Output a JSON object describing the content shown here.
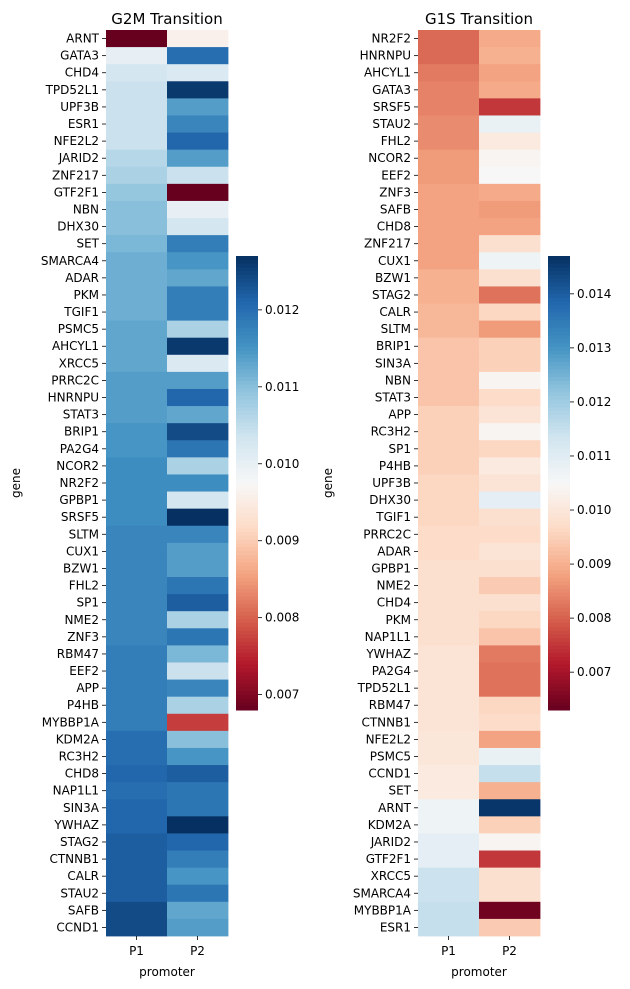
{
  "palette": {
    "low": "#67001f",
    "mid": "#f7f7f7",
    "high": "#053061"
  },
  "chart_data": [
    {
      "type": "heatmap",
      "title": "G2M Transition",
      "xlabel": "promoter",
      "ylabel": "gene",
      "columns": [
        "P1",
        "P2"
      ],
      "colorbar": {
        "min": 0.0068,
        "max": 0.0127,
        "ticks": [
          "0.007",
          "0.008",
          "0.009",
          "0.010",
          "0.011",
          "0.012"
        ],
        "tick_values": [
          0.007,
          0.008,
          0.009,
          0.01,
          0.011,
          0.012
        ]
      },
      "rows": [
        {
          "gene": "ARNT",
          "P1": 0.0068,
          "P2": 0.0096
        },
        {
          "gene": "GATA3",
          "P1": 0.01,
          "P2": 0.012
        },
        {
          "gene": "CHD4",
          "P1": 0.0103,
          "P2": 0.0102
        },
        {
          "gene": "TPD52L1",
          "P1": 0.0104,
          "P2": 0.0126
        },
        {
          "gene": "UPF3B",
          "P1": 0.0104,
          "P2": 0.0114
        },
        {
          "gene": "ESR1",
          "P1": 0.0104,
          "P2": 0.0117
        },
        {
          "gene": "NFE2L2",
          "P1": 0.0104,
          "P2": 0.0121
        },
        {
          "gene": "JARID2",
          "P1": 0.0106,
          "P2": 0.0114
        },
        {
          "gene": "ZNF217",
          "P1": 0.0107,
          "P2": 0.0104
        },
        {
          "gene": "GTF2F1",
          "P1": 0.0109,
          "P2": 0.0068
        },
        {
          "gene": "NBN",
          "P1": 0.011,
          "P2": 0.01
        },
        {
          "gene": "DHX30",
          "P1": 0.011,
          "P2": 0.0103
        },
        {
          "gene": "SET",
          "P1": 0.0111,
          "P2": 0.0118
        },
        {
          "gene": "SMARCA4",
          "P1": 0.0112,
          "P2": 0.0115
        },
        {
          "gene": "ADAR",
          "P1": 0.0112,
          "P2": 0.0113
        },
        {
          "gene": "PKM",
          "P1": 0.0112,
          "P2": 0.0118
        },
        {
          "gene": "TGIF1",
          "P1": 0.0112,
          "P2": 0.0118
        },
        {
          "gene": "PSMC5",
          "P1": 0.0113,
          "P2": 0.0107
        },
        {
          "gene": "AHCYL1",
          "P1": 0.0113,
          "P2": 0.0126
        },
        {
          "gene": "XRCC5",
          "P1": 0.0113,
          "P2": 0.0102
        },
        {
          "gene": "PRRC2C",
          "P1": 0.0114,
          "P2": 0.0114
        },
        {
          "gene": "HNRNPU",
          "P1": 0.0114,
          "P2": 0.0121
        },
        {
          "gene": "STAT3",
          "P1": 0.0114,
          "P2": 0.0113
        },
        {
          "gene": "BRIP1",
          "P1": 0.0115,
          "P2": 0.0124
        },
        {
          "gene": "PA2G4",
          "P1": 0.0115,
          "P2": 0.0119
        },
        {
          "gene": "NCOR2",
          "P1": 0.0116,
          "P2": 0.0107
        },
        {
          "gene": "NR2F2",
          "P1": 0.0116,
          "P2": 0.0116
        },
        {
          "gene": "GPBP1",
          "P1": 0.0116,
          "P2": 0.0103
        },
        {
          "gene": "SRSF5",
          "P1": 0.0116,
          "P2": 0.0127
        },
        {
          "gene": "SLTM",
          "P1": 0.0117,
          "P2": 0.0117
        },
        {
          "gene": "CUX1",
          "P1": 0.0117,
          "P2": 0.0114
        },
        {
          "gene": "BZW1",
          "P1": 0.0117,
          "P2": 0.0114
        },
        {
          "gene": "FHL2",
          "P1": 0.0117,
          "P2": 0.0119
        },
        {
          "gene": "SP1",
          "P1": 0.0117,
          "P2": 0.0122
        },
        {
          "gene": "NME2",
          "P1": 0.0117,
          "P2": 0.0107
        },
        {
          "gene": "ZNF3",
          "P1": 0.0117,
          "P2": 0.0119
        },
        {
          "gene": "RBM47",
          "P1": 0.0118,
          "P2": 0.0111
        },
        {
          "gene": "EEF2",
          "P1": 0.0118,
          "P2": 0.0104
        },
        {
          "gene": "APP",
          "P1": 0.0118,
          "P2": 0.0117
        },
        {
          "gene": "P4HB",
          "P1": 0.0118,
          "P2": 0.0107
        },
        {
          "gene": "MYBBP1A",
          "P1": 0.0118,
          "P2": 0.0077
        },
        {
          "gene": "KDM2A",
          "P1": 0.012,
          "P2": 0.011
        },
        {
          "gene": "RC3H2",
          "P1": 0.012,
          "P2": 0.0115
        },
        {
          "gene": "CHD8",
          "P1": 0.0121,
          "P2": 0.0122
        },
        {
          "gene": "NAP1L1",
          "P1": 0.012,
          "P2": 0.0119
        },
        {
          "gene": "SIN3A",
          "P1": 0.0121,
          "P2": 0.0119
        },
        {
          "gene": "YWHAZ",
          "P1": 0.0121,
          "P2": 0.0127
        },
        {
          "gene": "STAG2",
          "P1": 0.0122,
          "P2": 0.0121
        },
        {
          "gene": "CTNNB1",
          "P1": 0.0122,
          "P2": 0.0118
        },
        {
          "gene": "CALR",
          "P1": 0.0122,
          "P2": 0.0115
        },
        {
          "gene": "STAU2",
          "P1": 0.0122,
          "P2": 0.0119
        },
        {
          "gene": "SAFB",
          "P1": 0.0124,
          "P2": 0.0113
        },
        {
          "gene": "CCND1",
          "P1": 0.0124,
          "P2": 0.0114
        }
      ]
    },
    {
      "type": "heatmap",
      "title": "G1S Transition",
      "xlabel": "promoter",
      "ylabel": "gene",
      "columns": [
        "P1",
        "P2"
      ],
      "colorbar": {
        "min": 0.0063,
        "max": 0.0147,
        "ticks": [
          "0.007",
          "0.008",
          "0.009",
          "0.010",
          "0.011",
          "0.012",
          "0.013",
          "0.014"
        ],
        "tick_values": [
          0.007,
          0.008,
          0.009,
          0.01,
          0.011,
          0.012,
          0.013,
          0.014
        ]
      },
      "rows": [
        {
          "gene": "NR2F2",
          "P1": 0.0081,
          "P2": 0.0089
        },
        {
          "gene": "HNRNPU",
          "P1": 0.0081,
          "P2": 0.009
        },
        {
          "gene": "AHCYL1",
          "P1": 0.0083,
          "P2": 0.0088
        },
        {
          "gene": "GATA3",
          "P1": 0.0084,
          "P2": 0.0089
        },
        {
          "gene": "SRSF5",
          "P1": 0.0084,
          "P2": 0.0075
        },
        {
          "gene": "STAU2",
          "P1": 0.0085,
          "P2": 0.0108
        },
        {
          "gene": "FHL2",
          "P1": 0.0085,
          "P2": 0.0101
        },
        {
          "gene": "NCOR2",
          "P1": 0.0087,
          "P2": 0.0104
        },
        {
          "gene": "EEF2",
          "P1": 0.0087,
          "P2": 0.0105
        },
        {
          "gene": "ZNF3",
          "P1": 0.0088,
          "P2": 0.0089
        },
        {
          "gene": "SAFB",
          "P1": 0.0088,
          "P2": 0.0087
        },
        {
          "gene": "CHD8",
          "P1": 0.0088,
          "P2": 0.0088
        },
        {
          "gene": "ZNF217",
          "P1": 0.0088,
          "P2": 0.0098
        },
        {
          "gene": "CUX1",
          "P1": 0.0088,
          "P2": 0.0107
        },
        {
          "gene": "BZW1",
          "P1": 0.009,
          "P2": 0.0098
        },
        {
          "gene": "STAG2",
          "P1": 0.009,
          "P2": 0.0082
        },
        {
          "gene": "CALR",
          "P1": 0.0091,
          "P2": 0.0096
        },
        {
          "gene": "SLTM",
          "P1": 0.0091,
          "P2": 0.0087
        },
        {
          "gene": "BRIP1",
          "P1": 0.0093,
          "P2": 0.0095
        },
        {
          "gene": "SIN3A",
          "P1": 0.0093,
          "P2": 0.0095
        },
        {
          "gene": "NBN",
          "P1": 0.0093,
          "P2": 0.0104
        },
        {
          "gene": "STAT3",
          "P1": 0.0093,
          "P2": 0.0097
        },
        {
          "gene": "APP",
          "P1": 0.0095,
          "P2": 0.0099
        },
        {
          "gene": "RC3H2",
          "P1": 0.0095,
          "P2": 0.0104
        },
        {
          "gene": "SP1",
          "P1": 0.0095,
          "P2": 0.0096
        },
        {
          "gene": "P4HB",
          "P1": 0.0095,
          "P2": 0.0101
        },
        {
          "gene": "UPF3B",
          "P1": 0.0096,
          "P2": 0.0099
        },
        {
          "gene": "DHX30",
          "P1": 0.0096,
          "P2": 0.0109
        },
        {
          "gene": "TGIF1",
          "P1": 0.0096,
          "P2": 0.0098
        },
        {
          "gene": "PRRC2C",
          "P1": 0.0097,
          "P2": 0.0097
        },
        {
          "gene": "ADAR",
          "P1": 0.0097,
          "P2": 0.0099
        },
        {
          "gene": "GPBP1",
          "P1": 0.0098,
          "P2": 0.0098
        },
        {
          "gene": "NME2",
          "P1": 0.0098,
          "P2": 0.0094
        },
        {
          "gene": "CHD4",
          "P1": 0.0098,
          "P2": 0.0098
        },
        {
          "gene": "PKM",
          "P1": 0.0098,
          "P2": 0.0096
        },
        {
          "gene": "NAP1L1",
          "P1": 0.0098,
          "P2": 0.0093
        },
        {
          "gene": "YWHAZ",
          "P1": 0.0099,
          "P2": 0.0083
        },
        {
          "gene": "PA2G4",
          "P1": 0.0099,
          "P2": 0.0082
        },
        {
          "gene": "TPD52L1",
          "P1": 0.0099,
          "P2": 0.0082
        },
        {
          "gene": "RBM47",
          "P1": 0.0099,
          "P2": 0.0096
        },
        {
          "gene": "CTNNB1",
          "P1": 0.0099,
          "P2": 0.0097
        },
        {
          "gene": "NFE2L2",
          "P1": 0.01,
          "P2": 0.0088
        },
        {
          "gene": "PSMC5",
          "P1": 0.01,
          "P2": 0.0108
        },
        {
          "gene": "CCND1",
          "P1": 0.0101,
          "P2": 0.0115
        },
        {
          "gene": "SET",
          "P1": 0.0101,
          "P2": 0.009
        },
        {
          "gene": "ARNT",
          "P1": 0.0107,
          "P2": 0.0146
        },
        {
          "gene": "KDM2A",
          "P1": 0.0107,
          "P2": 0.0095
        },
        {
          "gene": "JARID2",
          "P1": 0.0109,
          "P2": 0.0104
        },
        {
          "gene": "GTF2F1",
          "P1": 0.0109,
          "P2": 0.0075
        },
        {
          "gene": "XRCC5",
          "P1": 0.0114,
          "P2": 0.0098
        },
        {
          "gene": "SMARCA4",
          "P1": 0.0114,
          "P2": 0.0098
        },
        {
          "gene": "MYBBP1A",
          "P1": 0.0115,
          "P2": 0.0064
        },
        {
          "gene": "ESR1",
          "P1": 0.0115,
          "P2": 0.0094
        }
      ]
    }
  ]
}
